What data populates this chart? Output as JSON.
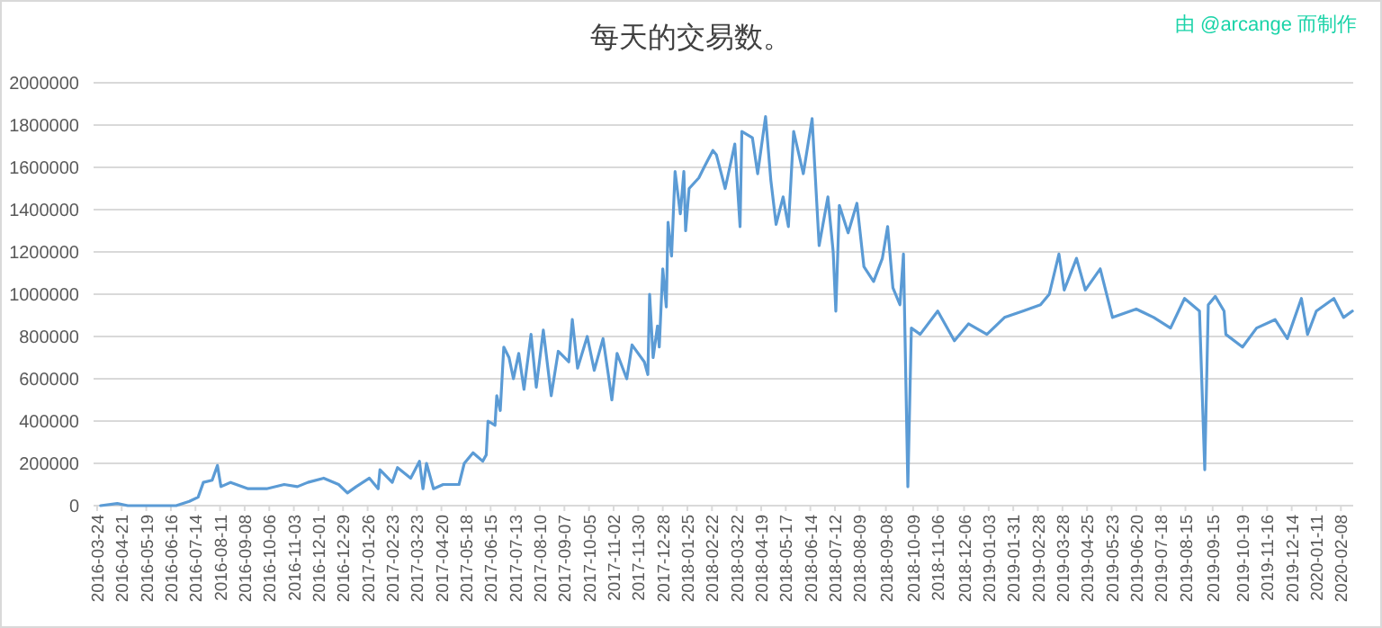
{
  "chart_data": {
    "type": "line",
    "title": "每天的交易数。",
    "annotations": [
      "由 @arcange 而制作"
    ],
    "x": [
      "2016-03-28",
      "2016-04-16",
      "2016-04-28",
      "2016-06-22",
      "2016-07-07",
      "2016-07-17",
      "2016-07-23",
      "2016-08-02",
      "2016-08-08",
      "2016-08-12",
      "2016-08-23",
      "2016-09-12",
      "2016-10-03",
      "2016-10-23",
      "2016-11-07",
      "2016-11-19",
      "2016-12-07",
      "2016-12-24",
      "2017-01-03",
      "2017-01-13",
      "2017-01-28",
      "2017-02-07",
      "2017-02-09",
      "2017-02-23",
      "2017-03-01",
      "2017-03-16",
      "2017-03-26",
      "2017-03-30",
      "2017-04-03",
      "2017-04-11",
      "2017-04-22",
      "2017-05-10",
      "2017-05-16",
      "2017-05-26",
      "2017-06-06",
      "2017-06-10",
      "2017-06-12",
      "2017-06-20",
      "2017-06-22",
      "2017-06-26",
      "2017-06-30",
      "2017-07-06",
      "2017-07-11",
      "2017-07-17",
      "2017-07-23",
      "2017-07-31",
      "2017-08-06",
      "2017-08-14",
      "2017-08-23",
      "2017-08-31",
      "2017-09-12",
      "2017-09-16",
      "2017-09-22",
      "2017-10-03",
      "2017-10-11",
      "2017-10-21",
      "2017-10-27",
      "2017-10-31",
      "2017-11-06",
      "2017-11-17",
      "2017-11-23",
      "2017-12-07",
      "2017-12-11",
      "2017-12-13",
      "2017-12-17",
      "2017-12-22",
      "2017-12-24",
      "2017-12-28",
      "2018-01-01",
      "2018-01-03",
      "2018-01-07",
      "2018-01-11",
      "2018-01-17",
      "2018-01-21",
      "2018-01-23",
      "2018-01-27",
      "2018-02-07",
      "2018-02-13",
      "2018-02-23",
      "2018-02-27",
      "2018-03-09",
      "2018-03-20",
      "2018-03-26",
      "2018-03-28",
      "2018-04-09",
      "2018-04-15",
      "2018-04-24",
      "2018-04-30",
      "2018-05-06",
      "2018-05-14",
      "2018-05-20",
      "2018-05-26",
      "2018-06-06",
      "2018-06-16",
      "2018-06-24",
      "2018-07-04",
      "2018-07-10",
      "2018-07-13",
      "2018-07-17",
      "2018-07-27",
      "2018-08-06",
      "2018-08-14",
      "2018-08-25",
      "2018-09-04",
      "2018-09-10",
      "2018-09-16",
      "2018-09-24",
      "2018-09-28",
      "2018-10-03",
      "2018-10-07",
      "2018-10-17",
      "2018-11-06",
      "2018-11-25",
      "2018-12-11",
      "2019-01-01",
      "2019-01-21",
      "2019-02-11",
      "2019-03-03",
      "2019-03-13",
      "2019-03-24",
      "2019-03-30",
      "2019-04-13",
      "2019-04-23",
      "2019-05-10",
      "2019-05-24",
      "2019-06-20",
      "2019-07-10",
      "2019-07-29",
      "2019-08-14",
      "2019-08-31",
      "2019-09-06",
      "2019-09-10",
      "2019-09-18",
      "2019-09-28",
      "2019-09-30",
      "2019-10-19",
      "2019-11-04",
      "2019-11-25",
      "2019-12-09",
      "2019-12-25",
      "2020-01-01",
      "2020-01-11",
      "2020-01-31",
      "2020-02-11",
      "2020-02-21"
    ],
    "series": [
      {
        "color": "#5b9bd5",
        "values": [
          0,
          10000,
          0,
          0,
          20000,
          40000,
          110000,
          120000,
          190000,
          90000,
          110000,
          80000,
          80000,
          100000,
          90000,
          110000,
          130000,
          100000,
          60000,
          90000,
          130000,
          80000,
          170000,
          110000,
          180000,
          130000,
          210000,
          80000,
          200000,
          80000,
          100000,
          100000,
          200000,
          250000,
          210000,
          240000,
          400000,
          380000,
          520000,
          450000,
          750000,
          700000,
          600000,
          720000,
          550000,
          810000,
          560000,
          830000,
          520000,
          730000,
          680000,
          880000,
          650000,
          800000,
          640000,
          790000,
          620000,
          500000,
          720000,
          600000,
          760000,
          680000,
          620000,
          1000000,
          700000,
          850000,
          750000,
          1120000,
          940000,
          1340000,
          1180000,
          1580000,
          1380000,
          1580000,
          1300000,
          1500000,
          1550000,
          1600000,
          1680000,
          1660000,
          1500000,
          1710000,
          1320000,
          1770000,
          1740000,
          1570000,
          1840000,
          1540000,
          1330000,
          1460000,
          1320000,
          1770000,
          1570000,
          1830000,
          1230000,
          1460000,
          1200000,
          920000,
          1420000,
          1290000,
          1430000,
          1130000,
          1060000,
          1170000,
          1320000,
          1030000,
          950000,
          1190000,
          90000,
          840000,
          810000,
          920000,
          780000,
          860000,
          810000,
          890000,
          920000,
          950000,
          1000000,
          1190000,
          1020000,
          1170000,
          1020000,
          1120000,
          890000,
          930000,
          890000,
          840000,
          980000,
          920000,
          170000,
          950000,
          990000,
          920000,
          810000,
          750000,
          840000,
          880000,
          790000,
          980000,
          810000,
          920000,
          980000,
          890000,
          920000
        ]
      }
    ],
    "xlim": [
      "2016-03-20",
      "2020-02-22"
    ],
    "xticks": [
      "2016-03-24",
      "2016-04-21",
      "2016-05-19",
      "2016-06-16",
      "2016-07-14",
      "2016-08-11",
      "2016-09-08",
      "2016-10-06",
      "2016-11-03",
      "2016-12-01",
      "2016-12-29",
      "2017-01-26",
      "2017-02-23",
      "2017-03-23",
      "2017-04-20",
      "2017-05-18",
      "2017-06-15",
      "2017-07-13",
      "2017-08-10",
      "2017-09-07",
      "2017-10-05",
      "2017-11-02",
      "2017-11-30",
      "2017-12-28",
      "2018-01-25",
      "2018-02-22",
      "2018-03-22",
      "2018-04-19",
      "2018-05-17",
      "2018-06-14",
      "2018-07-12",
      "2018-08-09",
      "2018-09-08",
      "2018-10-09",
      "2018-11-06",
      "2018-12-06",
      "2019-01-03",
      "2019-01-31",
      "2019-02-28",
      "2019-03-28",
      "2019-04-25",
      "2019-05-23",
      "2019-06-20",
      "2019-07-18",
      "2019-08-15",
      "2019-09-15",
      "2019-10-19",
      "2019-11-16",
      "2019-12-14",
      "2020-01-11",
      "2020-02-08"
    ],
    "ylim": [
      0,
      2000000
    ],
    "yticks": [
      0,
      200000,
      400000,
      600000,
      800000,
      1000000,
      1200000,
      1400000,
      1600000,
      1800000,
      2000000
    ],
    "grid": "y"
  }
}
